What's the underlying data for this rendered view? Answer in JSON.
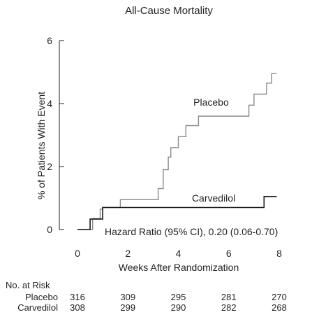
{
  "chart_data": {
    "type": "line",
    "title": "All-Cause Mortality",
    "xlabel": "Weeks After Randomization",
    "ylabel": "% of Patients With Event",
    "xlim": [
      0,
      8
    ],
    "ylim": [
      0,
      6
    ],
    "xticks": [
      "0",
      "2",
      "4",
      "6",
      "8"
    ],
    "yticks": [
      "0",
      "2",
      "4",
      "6"
    ],
    "grid": false,
    "series": [
      {
        "name": "Placebo",
        "color": "#8a8a8a",
        "x": [
          0,
          0.6,
          0.6,
          0.9,
          0.9,
          1.0,
          1.0,
          1.7,
          1.7,
          3.2,
          3.2,
          3.4,
          3.4,
          3.6,
          3.6,
          3.7,
          3.7,
          3.85,
          3.85,
          4.0,
          4.0,
          4.3,
          4.3,
          4.8,
          4.8,
          6.8,
          6.8,
          7.0,
          7.0,
          7.5,
          7.5,
          7.7,
          7.7,
          7.9
        ],
        "y": [
          0,
          0,
          0.35,
          0.35,
          0.65,
          0.65,
          0.7,
          0.7,
          0.95,
          0.95,
          1.3,
          1.3,
          1.9,
          1.9,
          2.3,
          2.3,
          2.6,
          2.6,
          2.6,
          2.6,
          2.95,
          2.95,
          3.3,
          3.3,
          3.6,
          3.6,
          3.95,
          3.95,
          4.3,
          4.3,
          4.65,
          4.65,
          4.95,
          4.95
        ]
      },
      {
        "name": "Carvedilol",
        "color": "#1a1a1a",
        "x": [
          0,
          0.5,
          0.5,
          1.0,
          1.0,
          7.4,
          7.4,
          7.9
        ],
        "y": [
          0,
          0,
          0.33,
          0.33,
          0.7,
          0.7,
          1.05,
          1.05
        ]
      }
    ],
    "annotation": "Hazard Ratio (95% CI), 0.20 (0.06-0.70)",
    "risk_table": {
      "header": "No. at Risk",
      "rows": [
        {
          "label": "Placebo",
          "values": [
            "316",
            "309",
            "295",
            "281",
            "270"
          ]
        },
        {
          "label": "Carvedilol",
          "values": [
            "308",
            "299",
            "290",
            "282",
            "268"
          ]
        }
      ]
    }
  }
}
